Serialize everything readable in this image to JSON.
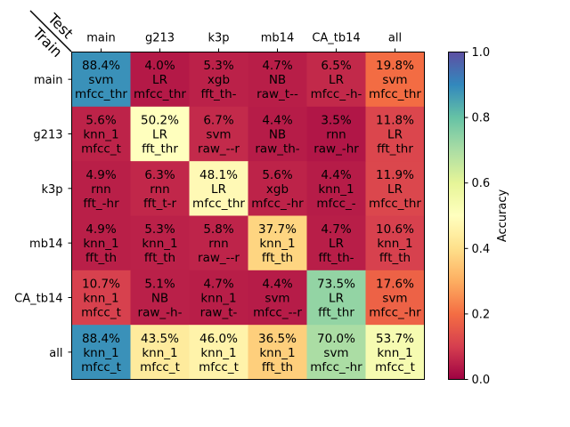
{
  "chart_data": {
    "type": "heatmap",
    "row_axis_label": "Train",
    "col_axis_label": "Test",
    "rows": [
      "main",
      "g213",
      "k3p",
      "mb14",
      "CA_tb14",
      "all"
    ],
    "cols": [
      "main",
      "g213",
      "k3p",
      "mb14",
      "CA_tb14",
      "all"
    ],
    "cells": [
      [
        {
          "value": 0.884,
          "pct": "88.4%",
          "model": "svm",
          "feature": "mfcc_thr"
        },
        {
          "value": 0.04,
          "pct": "4.0%",
          "model": "LR",
          "feature": "mfcc_thr"
        },
        {
          "value": 0.053,
          "pct": "5.3%",
          "model": "xgb",
          "feature": "fft_th-"
        },
        {
          "value": 0.047,
          "pct": "4.7%",
          "model": "NB",
          "feature": "raw_t--"
        },
        {
          "value": 0.065,
          "pct": "6.5%",
          "model": "LR",
          "feature": "mfcc_-h-"
        },
        {
          "value": 0.198,
          "pct": "19.8%",
          "model": "svm",
          "feature": "mfcc_thr"
        }
      ],
      [
        {
          "value": 0.056,
          "pct": "5.6%",
          "model": "knn_1",
          "feature": "mfcc_t"
        },
        {
          "value": 0.502,
          "pct": "50.2%",
          "model": "LR",
          "feature": "fft_thr"
        },
        {
          "value": 0.067,
          "pct": "6.7%",
          "model": "svm",
          "feature": "raw_--r"
        },
        {
          "value": 0.044,
          "pct": "4.4%",
          "model": "NB",
          "feature": "raw_th-"
        },
        {
          "value": 0.035,
          "pct": "3.5%",
          "model": "rnn",
          "feature": "raw_-hr"
        },
        {
          "value": 0.118,
          "pct": "11.8%",
          "model": "LR",
          "feature": "fft_thr"
        }
      ],
      [
        {
          "value": 0.049,
          "pct": "4.9%",
          "model": "rnn",
          "feature": "fft_-hr"
        },
        {
          "value": 0.063,
          "pct": "6.3%",
          "model": "rnn",
          "feature": "fft_t-r"
        },
        {
          "value": 0.481,
          "pct": "48.1%",
          "model": "LR",
          "feature": "mfcc_thr"
        },
        {
          "value": 0.056,
          "pct": "5.6%",
          "model": "xgb",
          "feature": "mfcc_-hr"
        },
        {
          "value": 0.044,
          "pct": "4.4%",
          "model": "knn_1",
          "feature": "mfcc_-"
        },
        {
          "value": 0.119,
          "pct": "11.9%",
          "model": "LR",
          "feature": "mfcc_thr"
        }
      ],
      [
        {
          "value": 0.049,
          "pct": "4.9%",
          "model": "knn_1",
          "feature": "fft_th"
        },
        {
          "value": 0.053,
          "pct": "5.3%",
          "model": "knn_1",
          "feature": "fft_th"
        },
        {
          "value": 0.058,
          "pct": "5.8%",
          "model": "rnn",
          "feature": "raw_--r"
        },
        {
          "value": 0.377,
          "pct": "37.7%",
          "model": "knn_1",
          "feature": "fft_th"
        },
        {
          "value": 0.047,
          "pct": "4.7%",
          "model": "LR",
          "feature": "fft_th-"
        },
        {
          "value": 0.106,
          "pct": "10.6%",
          "model": "knn_1",
          "feature": "fft_th"
        }
      ],
      [
        {
          "value": 0.107,
          "pct": "10.7%",
          "model": "knn_1",
          "feature": "mfcc_t"
        },
        {
          "value": 0.051,
          "pct": "5.1%",
          "model": "NB",
          "feature": "raw_-h-"
        },
        {
          "value": 0.047,
          "pct": "4.7%",
          "model": "knn_1",
          "feature": "raw_t-"
        },
        {
          "value": 0.044,
          "pct": "4.4%",
          "model": "svm",
          "feature": "mfcc_--r"
        },
        {
          "value": 0.735,
          "pct": "73.5%",
          "model": "LR",
          "feature": "fft_thr"
        },
        {
          "value": 0.176,
          "pct": "17.6%",
          "model": "svm",
          "feature": "mfcc_-hr"
        }
      ],
      [
        {
          "value": 0.884,
          "pct": "88.4%",
          "model": "knn_1",
          "feature": "mfcc_t"
        },
        {
          "value": 0.435,
          "pct": "43.5%",
          "model": "knn_1",
          "feature": "mfcc_t"
        },
        {
          "value": 0.46,
          "pct": "46.0%",
          "model": "knn_1",
          "feature": "mfcc_t"
        },
        {
          "value": 0.365,
          "pct": "36.5%",
          "model": "knn_1",
          "feature": "fft_th"
        },
        {
          "value": 0.7,
          "pct": "70.0%",
          "model": "svm",
          "feature": "mfcc_-hr"
        },
        {
          "value": 0.537,
          "pct": "53.7%",
          "model": "knn_1",
          "feature": "mfcc_t"
        }
      ]
    ],
    "colorbar": {
      "label": "Accuracy",
      "range": [
        0,
        1
      ],
      "ticks": [
        "0.0",
        "0.2",
        "0.4",
        "0.6",
        "0.8",
        "1.0"
      ],
      "colormap": "Spectral"
    }
  }
}
